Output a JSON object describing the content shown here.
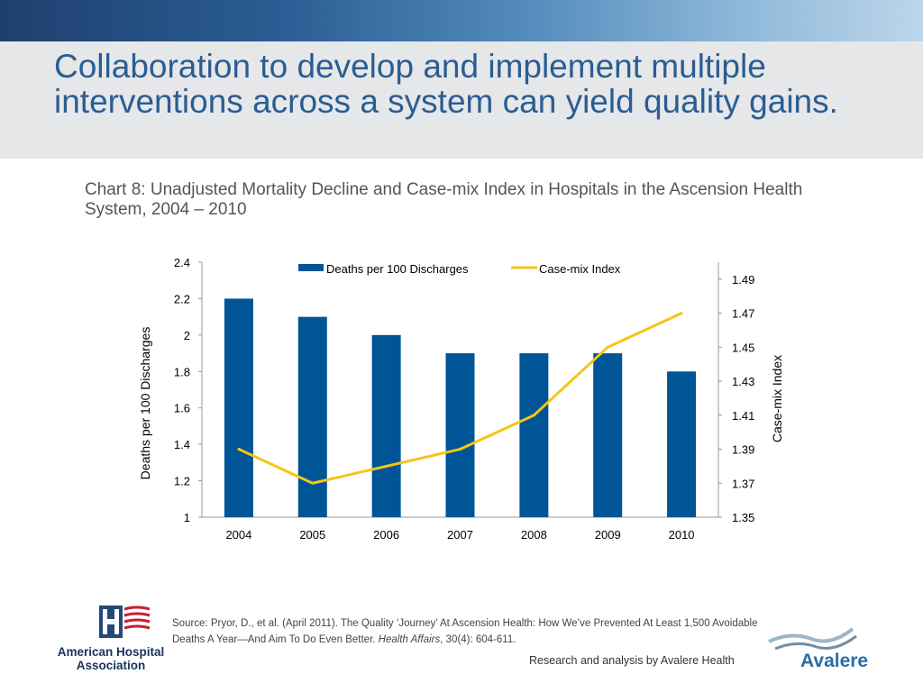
{
  "slide": {
    "title": "Collaboration to develop and implement multiple interventions across a system can yield quality gains.",
    "source_prefix": "Source: Pryor, D., et al. (April 2011). The Quality ‘Journey’ At Ascension Health: How We’ve Prevented At Least 1,500 Avoidable Deaths A Year—And Aim To Do Even Better. ",
    "source_journal": "Health Affairs",
    "source_suffix": ", 30(4): 604-611.",
    "credit": "Research and analysis by Avalere Health",
    "aha_logo_text": "American Hospital Association",
    "avalere_logo_text": "Avalere"
  },
  "chart_data": {
    "type": "bar",
    "title": "Chart 8: Unadjusted Mortality Decline and Case-mix Index in Hospitals in the Ascension Health System, 2004 – 2010",
    "categories": [
      "2004",
      "2005",
      "2006",
      "2007",
      "2008",
      "2009",
      "2010"
    ],
    "ylabel_left": "Deaths per 100 Discharges",
    "ylabel_right": "Case-mix Index",
    "ylim_left": [
      1,
      2.4
    ],
    "ylim_right": [
      1.35,
      1.5
    ],
    "yticks_left": [
      "1",
      "1.2",
      "1.4",
      "1.6",
      "1.8",
      "2",
      "2.2",
      "2.4"
    ],
    "yticks_right": [
      "1.35",
      "1.37",
      "1.39",
      "1.41",
      "1.43",
      "1.45",
      "1.47",
      "1.49"
    ],
    "legend_position": "top",
    "grid": false,
    "series": [
      {
        "name": "Deaths per 100 Discharges",
        "type": "bar",
        "axis": "left",
        "color": "#005596",
        "values": [
          2.2,
          2.1,
          2.0,
          1.9,
          1.9,
          1.9,
          1.8
        ]
      },
      {
        "name": "Case-mix Index",
        "type": "line",
        "axis": "right",
        "color": "#f5c518",
        "values": [
          1.39,
          1.37,
          1.38,
          1.39,
          1.41,
          1.45,
          1.47
        ]
      }
    ]
  }
}
